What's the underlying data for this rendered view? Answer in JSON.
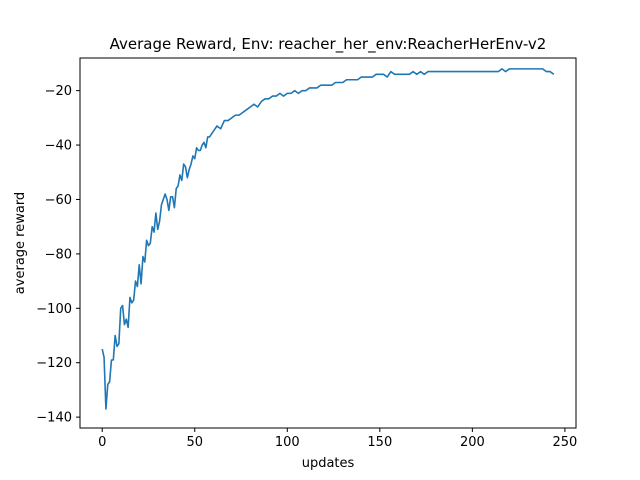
{
  "chart_data": {
    "type": "line",
    "title": "Average Reward, Env: reacher_her_env:ReacherHerEnv-v2",
    "xlabel": "updates",
    "ylabel": "average reward",
    "xlim": [
      -12,
      256
    ],
    "ylim": [
      -144,
      -8
    ],
    "x_ticks": [
      0,
      50,
      100,
      150,
      200,
      250
    ],
    "y_ticks": [
      -20,
      -40,
      -60,
      -80,
      -100,
      -120,
      -140
    ],
    "x_tick_labels": [
      "0",
      "50",
      "100",
      "150",
      "200",
      "250"
    ],
    "y_tick_labels": [
      "−20",
      "−40",
      "−60",
      "−80",
      "−100",
      "−120",
      "−140"
    ],
    "grid": false,
    "legend": "none",
    "line_color": "#1f77b4",
    "series": [
      {
        "x": [
          0,
          1,
          2,
          3,
          4,
          5,
          6,
          7,
          8,
          9,
          10,
          11,
          12,
          13,
          14,
          15,
          16,
          17,
          18,
          19,
          20,
          21,
          22,
          23,
          24,
          25,
          26,
          27,
          28,
          29,
          30,
          31,
          32,
          33,
          34,
          35,
          36,
          37,
          38,
          39,
          40,
          41,
          42,
          43,
          44,
          45,
          46,
          47,
          48,
          49,
          50,
          51,
          52,
          53,
          54,
          55,
          56,
          57,
          58,
          59,
          60,
          62,
          64,
          66,
          68,
          70,
          72,
          74,
          76,
          78,
          80,
          82,
          84,
          86,
          88,
          90,
          92,
          94,
          96,
          98,
          100,
          102,
          104,
          106,
          108,
          110,
          112,
          114,
          116,
          118,
          120,
          122,
          124,
          126,
          128,
          130,
          132,
          134,
          136,
          138,
          140,
          142,
          144,
          146,
          148,
          150,
          152,
          154,
          156,
          158,
          160,
          162,
          164,
          166,
          168,
          170,
          172,
          174,
          176,
          178,
          180,
          182,
          184,
          186,
          188,
          190,
          192,
          194,
          196,
          198,
          200,
          202,
          204,
          206,
          208,
          210,
          212,
          214,
          216,
          218,
          220,
          222,
          224,
          226,
          228,
          230,
          232,
          234,
          236,
          238,
          240,
          242,
          244
        ],
        "y": [
          -115,
          -118,
          -137,
          -128,
          -127,
          -119,
          -119,
          -110,
          -114,
          -113,
          -100,
          -99,
          -106,
          -104,
          -107,
          -96,
          -98,
          -97,
          -90,
          -92,
          -84,
          -91,
          -81,
          -83,
          -75,
          -77,
          -76,
          -70,
          -72,
          -65,
          -71,
          -68,
          -62,
          -60,
          -58,
          -60,
          -64,
          -59,
          -59,
          -63,
          -56,
          -55,
          -51,
          -53,
          -47,
          -48,
          -52,
          -49,
          -47,
          -44,
          -45,
          -41,
          -42,
          -42,
          -40,
          -39,
          -41,
          -37,
          -37,
          -36,
          -35,
          -33,
          -34,
          -31,
          -31,
          -30,
          -29,
          -29,
          -28,
          -27,
          -26,
          -25,
          -26,
          -24,
          -23,
          -23,
          -22,
          -22,
          -21,
          -22,
          -21,
          -21,
          -20,
          -21,
          -20,
          -20,
          -19,
          -19,
          -19,
          -18,
          -18,
          -18,
          -18,
          -17,
          -17,
          -17,
          -16,
          -16,
          -16,
          -16,
          -15,
          -15,
          -15,
          -15,
          -14,
          -14,
          -14,
          -15,
          -13,
          -14,
          -14,
          -14,
          -14,
          -14,
          -13,
          -14,
          -13,
          -14,
          -13,
          -13,
          -13,
          -13,
          -13,
          -13,
          -13,
          -13,
          -13,
          -13,
          -13,
          -13,
          -13,
          -13,
          -13,
          -13,
          -13,
          -13,
          -13,
          -13,
          -12,
          -13,
          -12,
          -12,
          -12,
          -12,
          -12,
          -12,
          -12,
          -12,
          -12,
          -12,
          -13,
          -13,
          -14
        ]
      }
    ]
  }
}
